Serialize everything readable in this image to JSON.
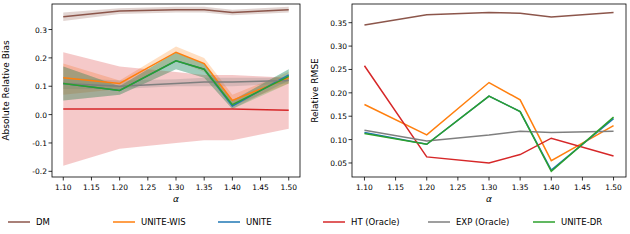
{
  "chart_data": [
    {
      "type": "line",
      "y_label": "Absolute Relative Bias",
      "x_label": "α",
      "x": [
        1.1,
        1.2,
        1.3,
        1.35,
        1.4,
        1.5
      ],
      "xlim": [
        1.08,
        1.52
      ],
      "xticks": [
        {
          "value": 1.1,
          "label": "1.10"
        },
        {
          "value": 1.15,
          "label": "1.15"
        },
        {
          "value": 1.2,
          "label": "1.20"
        },
        {
          "value": 1.25,
          "label": "1.25"
        },
        {
          "value": 1.3,
          "label": "1.30"
        },
        {
          "value": 1.35,
          "label": "1.35"
        },
        {
          "value": 1.4,
          "label": "1.40"
        },
        {
          "value": 1.45,
          "label": "1.45"
        },
        {
          "value": 1.5,
          "label": "1.50"
        }
      ],
      "ylim": [
        -0.22,
        0.39
      ],
      "yticks": [
        -0.2,
        -0.1,
        {
          "value": 0,
          "label": "0.0"
        },
        0.1,
        0.2,
        0.3
      ],
      "legend": "bottom",
      "series": [
        {
          "name": "DM",
          "color": "#8c564b",
          "values": [
            0.345,
            0.365,
            0.37,
            0.37,
            0.36,
            0.37
          ],
          "band_low": [
            0.33,
            0.355,
            0.36,
            0.36,
            0.35,
            0.36
          ],
          "band_high": [
            0.36,
            0.375,
            0.38,
            0.38,
            0.37,
            0.38
          ]
        },
        {
          "name": "UNITE-WIS",
          "color": "#ff7f0e",
          "values": [
            0.13,
            0.11,
            0.22,
            0.18,
            0.05,
            0.13
          ],
          "band_low": [
            0.07,
            0.09,
            0.19,
            0.15,
            0.03,
            0.11
          ],
          "band_high": [
            0.18,
            0.12,
            0.24,
            0.2,
            0.07,
            0.15
          ]
        },
        {
          "name": "UNITE",
          "color": "#1f77b4",
          "values": [
            0.11,
            0.085,
            0.19,
            0.16,
            0.03,
            0.14
          ],
          "band_low": [
            0.05,
            0.07,
            0.16,
            0.13,
            0.02,
            0.12
          ],
          "band_high": [
            0.17,
            0.1,
            0.22,
            0.18,
            0.05,
            0.16
          ]
        },
        {
          "name": "HT (Oracle)",
          "color": "#d62728",
          "values": [
            0.02,
            0.02,
            0.02,
            0.02,
            0.02,
            0.015
          ],
          "band_low": [
            -0.18,
            -0.12,
            -0.1,
            -0.09,
            -0.09,
            -0.05
          ],
          "band_high": [
            0.22,
            0.17,
            0.15,
            0.14,
            0.14,
            0.13
          ]
        },
        {
          "name": "EXP (Oracle)",
          "color": "#7f7f7f",
          "values": [
            0.11,
            0.1,
            0.11,
            0.115,
            0.115,
            0.12
          ],
          "band_low": [
            0.09,
            0.09,
            0.1,
            0.1,
            0.1,
            0.11
          ],
          "band_high": [
            0.13,
            0.12,
            0.125,
            0.13,
            0.13,
            0.13
          ]
        },
        {
          "name": "UNITE-DR",
          "color": "#2ca02c",
          "values": [
            0.11,
            0.085,
            0.19,
            0.16,
            0.035,
            0.135
          ],
          "band_low": [
            0.05,
            0.07,
            0.16,
            0.13,
            0.02,
            0.11
          ],
          "band_high": [
            0.17,
            0.1,
            0.22,
            0.18,
            0.05,
            0.16
          ]
        }
      ]
    },
    {
      "type": "line",
      "y_label": "Relative RMSE",
      "x_label": "α",
      "x": [
        1.1,
        1.2,
        1.3,
        1.35,
        1.4,
        1.5
      ],
      "xlim": [
        1.08,
        1.52
      ],
      "xticks": [
        {
          "value": 1.1,
          "label": "1.10"
        },
        {
          "value": 1.15,
          "label": "1.15"
        },
        {
          "value": 1.2,
          "label": "1.20"
        },
        {
          "value": 1.25,
          "label": "1.25"
        },
        {
          "value": 1.3,
          "label": "1.30"
        },
        {
          "value": 1.35,
          "label": "1.35"
        },
        {
          "value": 1.4,
          "label": "1.40"
        },
        {
          "value": 1.45,
          "label": "1.45"
        },
        {
          "value": 1.5,
          "label": "1.50"
        }
      ],
      "ylim": [
        0.02,
        0.39
      ],
      "yticks": [
        0.05,
        {
          "value": 0.1,
          "label": "0.10"
        },
        0.15,
        {
          "value": 0.2,
          "label": "0.20"
        },
        0.25,
        {
          "value": 0.3,
          "label": "0.30"
        },
        0.35
      ],
      "series": [
        {
          "color": "#8c564b",
          "values": [
            0.345,
            0.367,
            0.372,
            0.37,
            0.362,
            0.372
          ]
        },
        {
          "color": "#ff7f0e",
          "values": [
            0.175,
            0.11,
            0.222,
            0.185,
            0.055,
            0.13
          ]
        },
        {
          "color": "#1f77b4",
          "values": [
            0.115,
            0.09,
            0.193,
            0.16,
            0.035,
            0.145
          ]
        },
        {
          "color": "#d62728",
          "values": [
            0.258,
            0.063,
            0.05,
            0.068,
            0.103,
            0.065
          ]
        },
        {
          "color": "#7f7f7f",
          "values": [
            0.12,
            0.097,
            0.11,
            0.118,
            0.115,
            0.118
          ]
        },
        {
          "color": "#2ca02c",
          "values": [
            0.113,
            0.09,
            0.193,
            0.16,
            0.032,
            0.148
          ]
        }
      ]
    }
  ]
}
